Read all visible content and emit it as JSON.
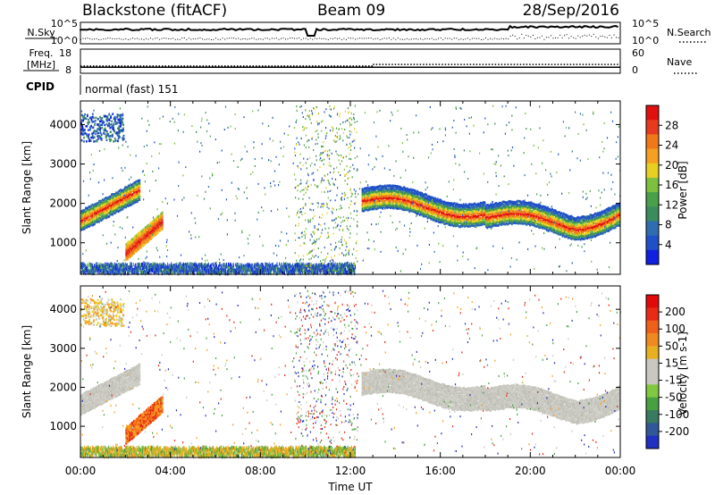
{
  "header": {
    "radar": "Blackstone (fitACF)",
    "beam": "Beam 09",
    "date": "28/Sep/2016"
  },
  "params": {
    "nsky_label": "N.Sky",
    "nsearch_label": "N.Search",
    "noise_ticks": [
      "10^5",
      "10^0"
    ],
    "noise_right_ticks": [
      "10^5",
      "10^0"
    ],
    "freq_label": "Freq.",
    "freq_unit": "[MHz]",
    "freq_ticks": [
      "18",
      "8"
    ],
    "nave_label": "Nave",
    "nave_ticks": [
      "60",
      "0"
    ],
    "cpid_label": "CPID",
    "cpid_value": "normal (fast) 151",
    "freq_value": 10.5,
    "nave_values": {
      "before_13h": 18,
      "after_13h": 22
    }
  },
  "chart_data": [
    {
      "type": "heatmap",
      "name": "power",
      "ylabel": "Slant Range [km]",
      "yticks": [
        "4000",
        "3000",
        "2000",
        "1000"
      ],
      "ylim": [
        200,
        4600
      ],
      "xlim": [
        0,
        24
      ],
      "colorbar_label": "Power [dB]",
      "colorbar_ticks": [
        "28",
        "24",
        "20",
        "16",
        "12",
        "8",
        "4"
      ],
      "colorbar_colors": [
        "#1020e0",
        "#2050c8",
        "#2f6cb0",
        "#3b8c5c",
        "#4aa04a",
        "#7dc040",
        "#e8d020",
        "#f5a020",
        "#f07818",
        "#e83a1e",
        "#e01010"
      ],
      "clim": [
        0,
        32
      ]
    },
    {
      "type": "heatmap",
      "name": "velocity",
      "ylabel": "Slant Range [km]",
      "yticks": [
        "4000",
        "3000",
        "2000",
        "1000"
      ],
      "ylim": [
        200,
        4600
      ],
      "xlim": [
        0,
        24
      ],
      "xlabel": "Time UT",
      "xticks": [
        "00:00",
        "04:00",
        "08:00",
        "12:00",
        "16:00",
        "20:00",
        "00:00"
      ],
      "colorbar_label": "Velocity [m s-1]",
      "colorbar_ticks": [
        "200",
        "100",
        "50",
        "15",
        "-15",
        "-50",
        "-100",
        "-200"
      ],
      "colorbar_colors": [
        "#2030c0",
        "#305898",
        "#3a7a60",
        "#48a040",
        "#80c840",
        "#c8c8c0",
        "#c8c8c0",
        "#e8b020",
        "#f08a20",
        "#f06018",
        "#e82a16",
        "#e00a0a"
      ],
      "clim": [
        -250,
        250
      ]
    }
  ]
}
